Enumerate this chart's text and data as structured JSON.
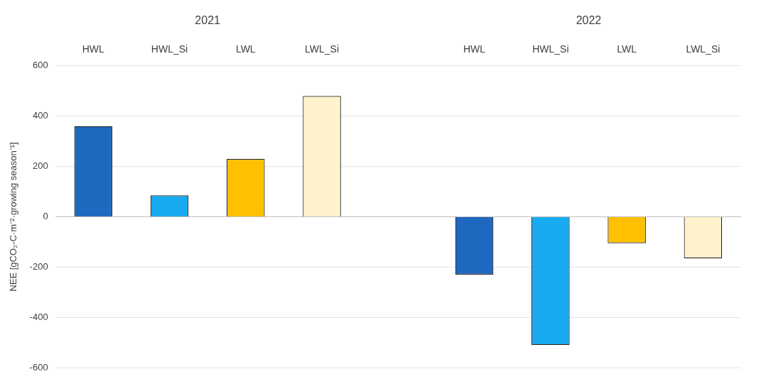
{
  "chart_data": {
    "type": "bar",
    "ylabel": "NEE [gCO₂-C·m⁻²·growing season⁻¹]",
    "categories": [
      "HWL",
      "HWL_Si",
      "LWL",
      "LWL_Si",
      null,
      "HWL",
      "HWL_Si",
      "LWL",
      "LWL_Si"
    ],
    "values": [
      360,
      85,
      230,
      480,
      null,
      -230,
      -510,
      -105,
      -165
    ],
    "colors": [
      "#1f68c0",
      "#17aaf0",
      "#ffc000",
      "#fff2cc",
      null,
      "#1f68c0",
      "#17aaf0",
      "#ffc000",
      "#fff2cc"
    ],
    "ylim": [
      -600,
      600
    ],
    "yticks": [
      -600,
      -400,
      -200,
      0,
      200,
      400,
      600
    ],
    "grid": "y",
    "legend": false,
    "annotations": [
      "2021",
      "2022"
    ]
  }
}
